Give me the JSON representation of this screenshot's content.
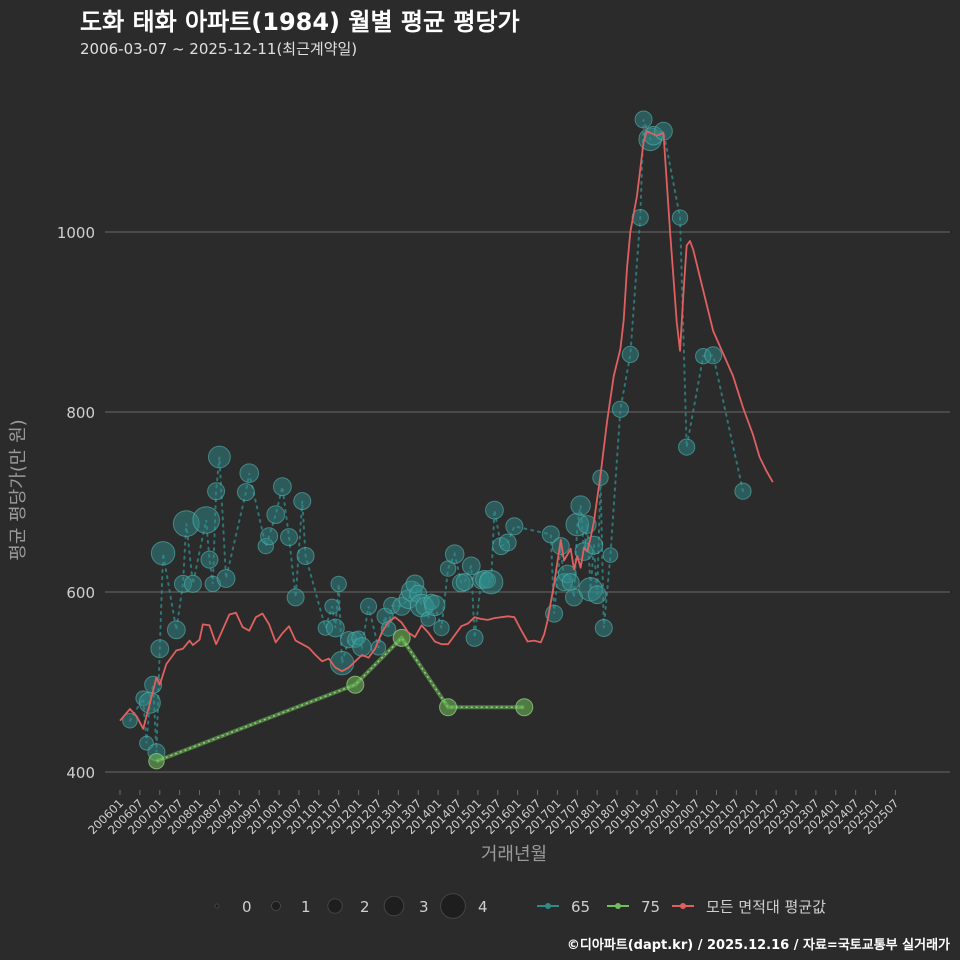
{
  "header": {
    "title": "도화 태화 아파트(1984) 월별 평균 평당가",
    "subtitle": "2006-03-07 ~ 2025-12-11(최근계약일)"
  },
  "footer": {
    "credit": "©디아파트(dapt.kr) / 2025.12.16 / 자료=국토교통부 실거래가"
  },
  "colors": {
    "background": "#2b2b2b",
    "grid": "#6a6a6a",
    "s65": "#2f8a8a",
    "s75": "#6fbf5a",
    "avg": "#e06060",
    "text": "#cfcfcf"
  },
  "chart_data": {
    "type": "line",
    "title": "도화 태화 아파트(1984) 월별 평균 평당가",
    "xlabel": "거래년월",
    "ylabel": "평균 평당가(만 원)",
    "ylim": [
      380,
      1180
    ],
    "yticks": [
      400,
      600,
      800,
      1000
    ],
    "x_tick_labels": [
      "200601",
      "200607",
      "200701",
      "200707",
      "200801",
      "200807",
      "200901",
      "200907",
      "201001",
      "201007",
      "201101",
      "201107",
      "201201",
      "201207",
      "201301",
      "201307",
      "201401",
      "201407",
      "201501",
      "201507",
      "201601",
      "201607",
      "201701",
      "201707",
      "201801",
      "201807",
      "201901",
      "201907",
      "202001",
      "202007",
      "202101",
      "202107",
      "202201",
      "202207",
      "202301",
      "202307",
      "202401",
      "202407",
      "202501",
      "202507"
    ],
    "x_range_months": [
      0,
      239
    ],
    "legend": {
      "size_title": "",
      "size_labels": [
        "0",
        "1",
        "2",
        "3",
        "4"
      ],
      "series_labels": [
        "65",
        "75",
        "모든 면적대 평균값"
      ]
    },
    "series": [
      {
        "name": "65",
        "points": [
          [
            3,
            457,
            1.2
          ],
          [
            7,
            482,
            1.2
          ],
          [
            8,
            432,
            1.1
          ],
          [
            9,
            477,
            2.0
          ],
          [
            10,
            497,
            1.5
          ],
          [
            11,
            422,
            1.5
          ],
          [
            12,
            537,
            1.6
          ],
          [
            13,
            643,
            2.3
          ],
          [
            17,
            558,
            1.6
          ],
          [
            19,
            609,
            1.5
          ],
          [
            20,
            676,
            2.6
          ],
          [
            22,
            609,
            1.5
          ],
          [
            26,
            680,
            2.7
          ],
          [
            27,
            636,
            1.5
          ],
          [
            28,
            609,
            1.3
          ],
          [
            29,
            712,
            1.5
          ],
          [
            30,
            750,
            2.1
          ],
          [
            32,
            615,
            1.6
          ],
          [
            38,
            711,
            1.5
          ],
          [
            39,
            732,
            1.7
          ],
          [
            44,
            651,
            1.3
          ],
          [
            45,
            662,
            1.5
          ],
          [
            47,
            686,
            1.6
          ],
          [
            49,
            717,
            1.6
          ],
          [
            51,
            661,
            1.5
          ],
          [
            53,
            594,
            1.5
          ],
          [
            55,
            701,
            1.5
          ],
          [
            56,
            640,
            1.5
          ],
          [
            62,
            560,
            1.2
          ],
          [
            64,
            584,
            1.2
          ],
          [
            65,
            560,
            1.6
          ],
          [
            66,
            609,
            1.3
          ],
          [
            67,
            521,
            2.3
          ],
          [
            69,
            547,
            1.4
          ],
          [
            71,
            547,
            1.3
          ],
          [
            72,
            549,
            1.1
          ],
          [
            73,
            539,
            1.7
          ],
          [
            75,
            584,
            1.4
          ],
          [
            78,
            538,
            1.2
          ],
          [
            80,
            573,
            1.4
          ],
          [
            81,
            559,
            1.2
          ],
          [
            82,
            585,
            1.4
          ],
          [
            85,
            584,
            1.6
          ],
          [
            87,
            592,
            1.7
          ],
          [
            88,
            601,
            1.9
          ],
          [
            89,
            609,
            1.6
          ],
          [
            90,
            598,
            1.5
          ],
          [
            91,
            585,
            2.2
          ],
          [
            92,
            584,
            1.6
          ],
          [
            93,
            570,
            1.2
          ],
          [
            94,
            589,
            1.3
          ],
          [
            95,
            585,
            1.9
          ],
          [
            97,
            560,
            1.3
          ],
          [
            99,
            626,
            1.3
          ],
          [
            101,
            642,
            1.7
          ],
          [
            103,
            610,
            1.6
          ],
          [
            104,
            611,
            1.5
          ],
          [
            106,
            629,
            1.6
          ],
          [
            107,
            549,
            1.5
          ],
          [
            109,
            613,
            1.5
          ],
          [
            110,
            614,
            1.6
          ],
          [
            111,
            613,
            1.3
          ],
          [
            112,
            611,
            2.3
          ],
          [
            113,
            691,
            1.6
          ],
          [
            115,
            651,
            1.5
          ],
          [
            117,
            655,
            1.5
          ],
          [
            119,
            673,
            1.5
          ],
          [
            130,
            664,
            1.5
          ],
          [
            131,
            576,
            1.5
          ],
          [
            133,
            651,
            1.5
          ],
          [
            134,
            611,
            1.5
          ],
          [
            135,
            620,
            1.6
          ],
          [
            136,
            611,
            1.5
          ],
          [
            137,
            594,
            1.5
          ],
          [
            138,
            675,
            2.2
          ],
          [
            139,
            696,
            1.8
          ],
          [
            140,
            645,
            1.6
          ],
          [
            141,
            675,
            1.6
          ],
          [
            142,
            603,
            2.3
          ],
          [
            143,
            652,
            1.6
          ],
          [
            144,
            597,
            1.6
          ],
          [
            145,
            727,
            1.3
          ],
          [
            146,
            560,
            1.5
          ],
          [
            148,
            641,
            1.2
          ],
          [
            151,
            803,
            1.4
          ],
          [
            154,
            864,
            1.4
          ],
          [
            157,
            1016,
            1.4
          ],
          [
            158,
            1125,
            1.5
          ],
          [
            160,
            1103,
            2.2
          ],
          [
            161,
            1107,
            1.7
          ],
          [
            164,
            1112,
            1.6
          ],
          [
            169,
            1016,
            1.3
          ],
          [
            171,
            761,
            1.4
          ],
          [
            176,
            862,
            1.3
          ],
          [
            179,
            863,
            1.5
          ],
          [
            188,
            712,
            1.4
          ]
        ]
      },
      {
        "name": "75",
        "points": [
          [
            11,
            412,
            1.3
          ],
          [
            71,
            497,
            1.5
          ],
          [
            85,
            549,
            1.5
          ],
          [
            99,
            472,
            1.5
          ],
          [
            122,
            472,
            1.5
          ]
        ]
      },
      {
        "name": "모든 면적대 평균값",
        "points": [
          [
            0,
            457
          ],
          [
            3,
            470
          ],
          [
            5,
            462
          ],
          [
            7,
            448
          ],
          [
            9,
            476
          ],
          [
            11,
            505
          ],
          [
            12,
            497
          ],
          [
            14,
            520
          ],
          [
            17,
            535
          ],
          [
            19,
            537
          ],
          [
            21,
            546
          ],
          [
            22,
            541
          ],
          [
            24,
            547
          ],
          [
            25,
            564
          ],
          [
            27,
            563
          ],
          [
            29,
            542
          ],
          [
            30,
            550
          ],
          [
            33,
            575
          ],
          [
            35,
            577
          ],
          [
            37,
            561
          ],
          [
            39,
            557
          ],
          [
            41,
            572
          ],
          [
            43,
            576
          ],
          [
            45,
            564
          ],
          [
            47,
            544
          ],
          [
            49,
            554
          ],
          [
            51,
            562
          ],
          [
            53,
            546
          ],
          [
            57,
            538
          ],
          [
            59,
            530
          ],
          [
            61,
            523
          ],
          [
            63,
            526
          ],
          [
            65,
            516
          ],
          [
            67,
            512
          ],
          [
            69,
            516
          ],
          [
            71,
            523
          ],
          [
            73,
            530
          ],
          [
            75,
            527
          ],
          [
            77,
            537
          ],
          [
            79,
            555
          ],
          [
            81,
            567
          ],
          [
            83,
            572
          ],
          [
            85,
            566
          ],
          [
            87,
            555
          ],
          [
            89,
            550
          ],
          [
            91,
            563
          ],
          [
            93,
            555
          ],
          [
            95,
            545
          ],
          [
            97,
            542
          ],
          [
            99,
            542
          ],
          [
            101,
            552
          ],
          [
            103,
            562
          ],
          [
            105,
            565
          ],
          [
            107,
            572
          ],
          [
            109,
            570
          ],
          [
            111,
            569
          ],
          [
            113,
            571
          ],
          [
            117,
            573
          ],
          [
            119,
            572
          ],
          [
            121,
            558
          ],
          [
            123,
            545
          ],
          [
            125,
            546
          ],
          [
            127,
            544
          ],
          [
            128,
            553
          ],
          [
            129,
            568
          ],
          [
            131,
            609
          ],
          [
            133,
            658
          ],
          [
            134,
            635
          ],
          [
            136,
            648
          ],
          [
            137,
            625
          ],
          [
            138,
            640
          ],
          [
            139,
            627
          ],
          [
            140,
            649
          ],
          [
            141,
            645
          ],
          [
            142,
            660
          ],
          [
            143,
            678
          ],
          [
            145,
            730
          ],
          [
            147,
            790
          ],
          [
            149,
            840
          ],
          [
            151,
            870
          ],
          [
            152,
            902
          ],
          [
            153,
            960
          ],
          [
            154,
            1000
          ],
          [
            156,
            1040
          ],
          [
            158,
            1100
          ],
          [
            159,
            1112
          ],
          [
            162,
            1107
          ],
          [
            164,
            1110
          ],
          [
            166,
            1000
          ],
          [
            168,
            900
          ],
          [
            169,
            868
          ],
          [
            170,
            930
          ],
          [
            171,
            985
          ],
          [
            172,
            990
          ],
          [
            173,
            980
          ],
          [
            176,
            935
          ],
          [
            179,
            890
          ],
          [
            182,
            865
          ],
          [
            185,
            840
          ],
          [
            188,
            805
          ],
          [
            191,
            775
          ],
          [
            193,
            750
          ],
          [
            195,
            735
          ],
          [
            197,
            722
          ]
        ]
      }
    ]
  }
}
